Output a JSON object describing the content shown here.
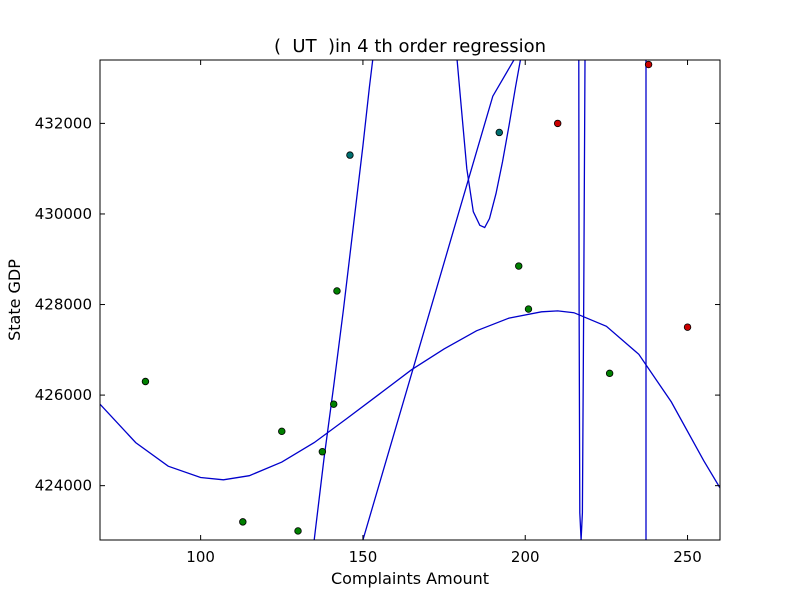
{
  "chart_data": {
    "type": "scatter",
    "title": "(  UT  )in 4 th order regression",
    "xlabel": "Complaints Amount",
    "ylabel": "State GDP",
    "xlim": [
      69,
      260
    ],
    "ylim": [
      422800,
      433400
    ],
    "xticks": [
      100,
      150,
      200,
      250
    ],
    "yticks": [
      424000,
      426000,
      428000,
      430000,
      432000
    ],
    "grid": false,
    "colors": {
      "green_points": "#008000",
      "teal_points": "#006f6f",
      "red_points": "#cc0000",
      "curves": "#0000cc"
    },
    "points_green": [
      [
        83,
        426300
      ],
      [
        113,
        423200
      ],
      [
        125,
        425200
      ],
      [
        130,
        423000
      ],
      [
        137.5,
        424750
      ],
      [
        141,
        425800
      ],
      [
        142,
        428300
      ],
      [
        198,
        428850
      ],
      [
        201,
        427900
      ],
      [
        226,
        426480
      ]
    ],
    "points_teal": [
      [
        146,
        431300
      ],
      [
        192,
        431800
      ]
    ],
    "points_red": [
      [
        210,
        432000
      ],
      [
        238,
        433300
      ],
      [
        250,
        427500
      ]
    ],
    "curves": [
      {
        "x": [
          69,
          80,
          90,
          100,
          107,
          115,
          125,
          135,
          145,
          155,
          165,
          175,
          185,
          195,
          205,
          210,
          215,
          225,
          235,
          245,
          255,
          260
        ],
        "y": [
          425800,
          424950,
          424430,
          424180,
          424130,
          424220,
          424520,
          424950,
          425480,
          426020,
          426560,
          427020,
          427420,
          427700,
          427840,
          427860,
          427820,
          427520,
          426900,
          425850,
          424550,
          423950
        ]
      },
      {
        "x": [
          135,
          138,
          141,
          144,
          147,
          150,
          152,
          153
        ],
        "y": [
          422800,
          424600,
          426200,
          427900,
          429700,
          431500,
          432800,
          433400
        ]
      },
      {
        "x": [
          150,
          160,
          170,
          180,
          190,
          196.5
        ],
        "y": [
          422800,
          425250,
          427700,
          430150,
          432600,
          433400
        ]
      },
      {
        "x": [
          179,
          180,
          182,
          184,
          186,
          187.5,
          189,
          191,
          193,
          195,
          197,
          198.5
        ],
        "y": [
          433400,
          432600,
          431000,
          430050,
          429750,
          429700,
          429900,
          430450,
          431150,
          431950,
          432800,
          433400
        ]
      },
      {
        "x": [
          216.5,
          216.6,
          216.8,
          217.2,
          217.6,
          218,
          218.4
        ],
        "y": [
          433400,
          428000,
          423400,
          422800,
          423400,
          428000,
          433400
        ]
      },
      {
        "x": [
          237.2,
          237.2
        ],
        "y": [
          422800,
          433400
        ]
      }
    ]
  }
}
